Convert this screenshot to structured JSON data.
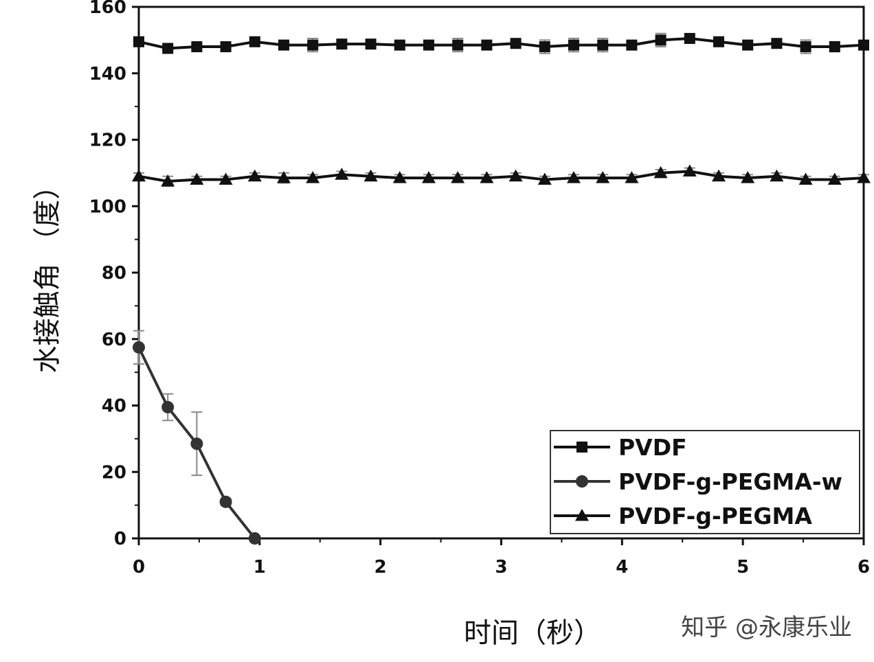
{
  "chart_data": {
    "type": "line",
    "title": "",
    "xlabel": "时间（秒）",
    "ylabel": "水接触角 （度）",
    "xlim": [
      0,
      6
    ],
    "ylim": [
      0,
      160
    ],
    "xticks": [
      0,
      1,
      2,
      3,
      4,
      5,
      6
    ],
    "yticks": [
      0,
      20,
      40,
      60,
      80,
      100,
      120,
      140,
      160
    ],
    "grid": false,
    "legend_position": "bottom-right",
    "series": [
      {
        "name": "PVDF",
        "marker": "square",
        "color": "#111111",
        "x": [
          0,
          0.24,
          0.48,
          0.72,
          0.96,
          1.2,
          1.44,
          1.68,
          1.92,
          2.16,
          2.4,
          2.64,
          2.88,
          3.12,
          3.36,
          3.6,
          3.84,
          4.08,
          4.32,
          4.56,
          4.8,
          5.04,
          5.28,
          5.52,
          5.76,
          6.0
        ],
        "y": [
          149.5,
          147.5,
          148,
          148,
          149.5,
          148.5,
          148.5,
          148.8,
          148.8,
          148.5,
          148.5,
          148.5,
          148.5,
          149,
          148,
          148.5,
          148.5,
          148.5,
          150,
          150.5,
          149.5,
          148.5,
          149,
          148,
          148,
          148.5
        ],
        "err": [
          1,
          1,
          0.8,
          0.8,
          0.8,
          0.8,
          2,
          1,
          1,
          0.8,
          1,
          2,
          1,
          0.8,
          2,
          2,
          2,
          1,
          2,
          1,
          1,
          1,
          1,
          2,
          1.5,
          1
        ]
      },
      {
        "name": "PVDF-g-PEGMA-w",
        "marker": "circle",
        "color": "#333333",
        "x": [
          0,
          0.24,
          0.48,
          0.72,
          0.96
        ],
        "y": [
          57.5,
          39.5,
          28.5,
          11,
          0
        ],
        "err": [
          5,
          4,
          9.5,
          1,
          0.5
        ]
      },
      {
        "name": "PVDF-g-PEGMA",
        "marker": "triangle",
        "color": "#111111",
        "x": [
          0,
          0.24,
          0.48,
          0.72,
          0.96,
          1.2,
          1.44,
          1.68,
          1.92,
          2.16,
          2.4,
          2.64,
          2.88,
          3.12,
          3.36,
          3.6,
          3.84,
          4.08,
          4.32,
          4.56,
          4.8,
          5.04,
          5.28,
          5.52,
          5.76,
          6.0
        ],
        "y": [
          109,
          107.5,
          108,
          108,
          109,
          108.5,
          108.5,
          109.5,
          109,
          108.5,
          108.5,
          108.5,
          108.5,
          109,
          108,
          108.5,
          108.5,
          108.5,
          110,
          110.5,
          109,
          108.5,
          109,
          108,
          108,
          108.5
        ],
        "err": [
          1,
          1.5,
          1,
          1,
          1,
          1.5,
          1,
          1,
          1,
          1,
          1,
          1,
          1,
          1,
          1,
          1,
          1,
          1,
          1,
          1,
          1,
          1,
          1,
          1,
          1,
          1
        ]
      }
    ]
  },
  "watermark": "知乎 @永康乐业"
}
